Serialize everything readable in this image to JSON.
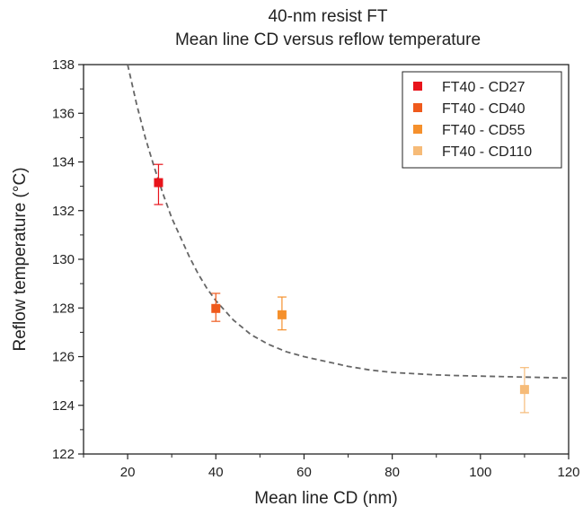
{
  "chart_data": {
    "type": "scatter",
    "title": "40-nm resist FT",
    "subtitle": "Mean line CD versus reflow temperature",
    "xlabel": "Mean line CD (nm)",
    "ylabel": "Reflow temperature (°C)",
    "xlim": [
      10,
      120
    ],
    "ylim": [
      122,
      138
    ],
    "x_ticks": [
      20,
      40,
      60,
      80,
      100,
      120
    ],
    "y_ticks": [
      122,
      124,
      126,
      128,
      130,
      132,
      134,
      136,
      138
    ],
    "legend_position": "top-right",
    "series": [
      {
        "name": "FT40 - CD27",
        "color": "#e8141b",
        "x": 27,
        "y": 133.15,
        "err_low": 132.25,
        "err_high": 133.9
      },
      {
        "name": "FT40 - CD40",
        "color": "#ef5a1c",
        "x": 40,
        "y": 127.98,
        "err_low": 127.45,
        "err_high": 128.6
      },
      {
        "name": "FT40 - CD55",
        "color": "#f5902c",
        "x": 55,
        "y": 127.72,
        "err_low": 127.1,
        "err_high": 128.45
      },
      {
        "name": "FT40 - CD110",
        "color": "#f6bb78",
        "x": 110,
        "y": 124.65,
        "err_low": 123.7,
        "err_high": 125.55
      }
    ],
    "fit_curve": {
      "style": "dashed",
      "color": "#666666",
      "x": [
        20,
        22,
        24,
        26,
        28,
        30,
        32,
        34,
        36,
        38,
        40,
        44,
        48,
        52,
        56,
        60,
        65,
        70,
        75,
        80,
        85,
        90,
        95,
        100,
        105,
        110,
        115,
        120
      ],
      "y": [
        138.0,
        136.4,
        135.0,
        133.8,
        132.7,
        131.7,
        130.9,
        130.1,
        129.4,
        128.8,
        128.3,
        127.5,
        126.9,
        126.5,
        126.2,
        126.0,
        125.8,
        125.6,
        125.45,
        125.35,
        125.3,
        125.25,
        125.22,
        125.2,
        125.18,
        125.16,
        125.14,
        125.12
      ]
    }
  }
}
